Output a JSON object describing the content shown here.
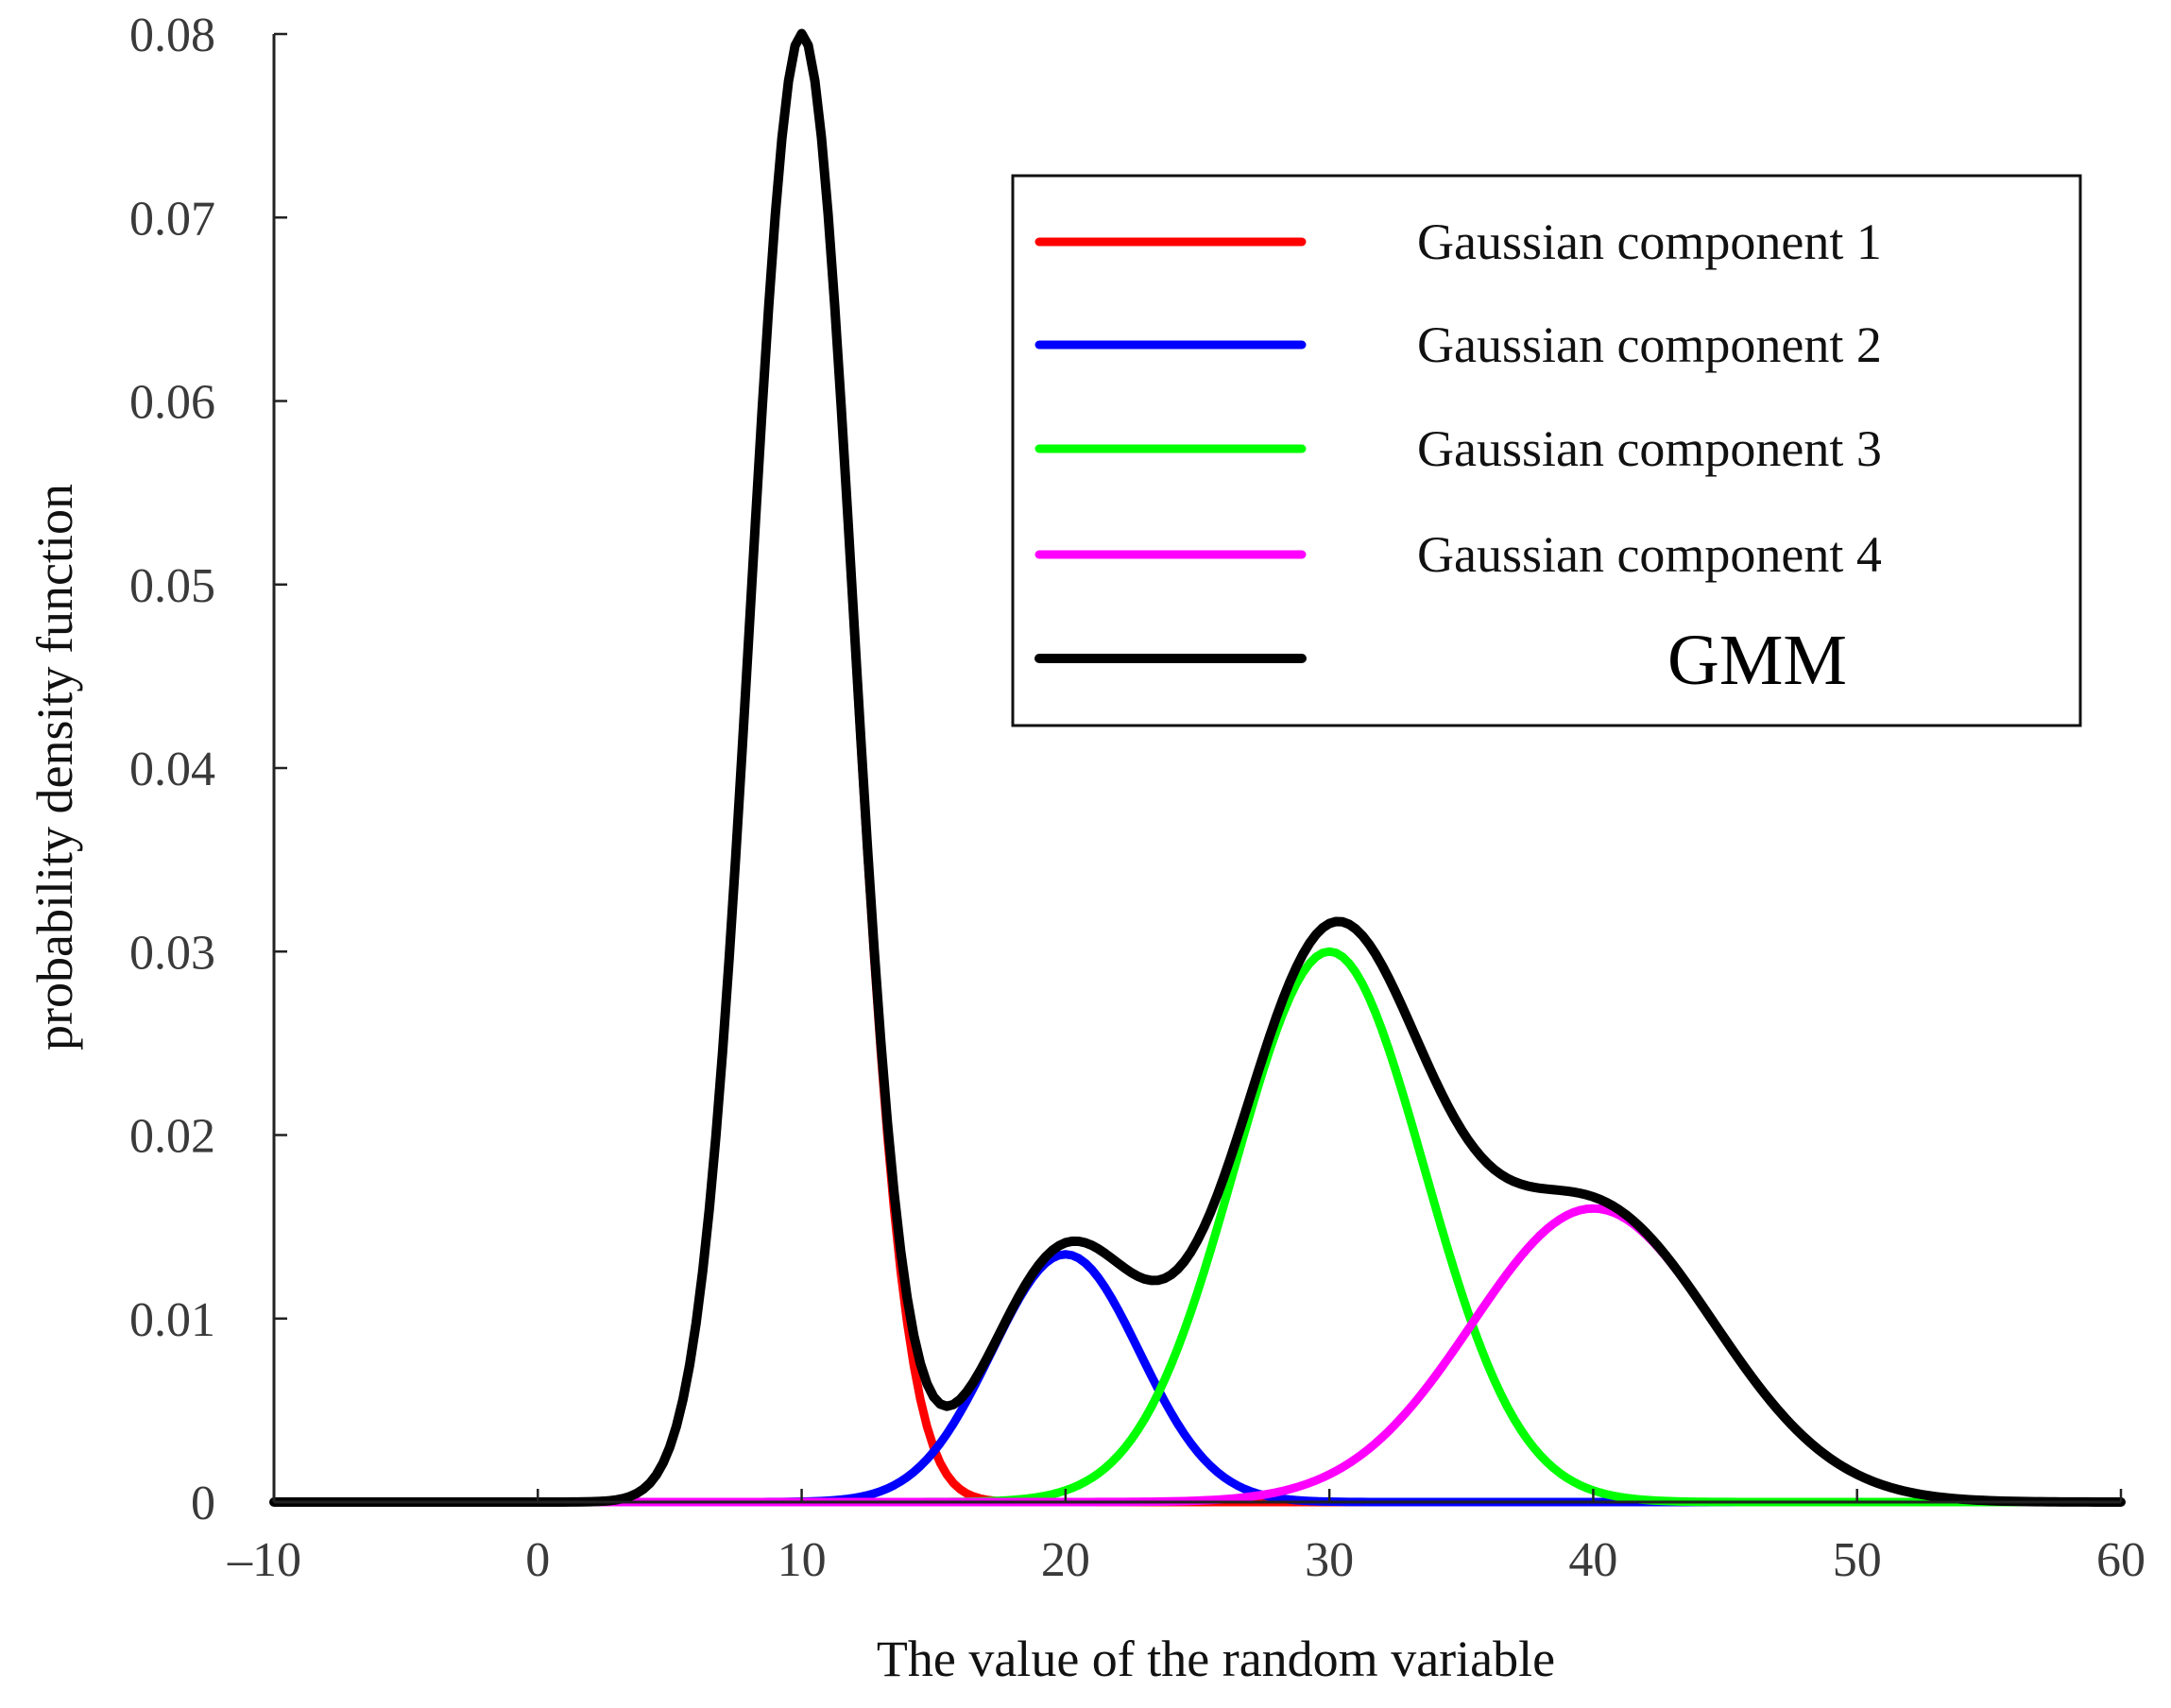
{
  "chart_data": {
    "type": "line",
    "title": "",
    "xlabel": "The value of the random variable",
    "ylabel": "probability density function",
    "xlim": [
      -10,
      60
    ],
    "ylim": [
      0,
      0.08
    ],
    "grid": false,
    "legend_position": "top-right",
    "x_ticks": [
      {
        "value": -10,
        "label": "–10"
      },
      {
        "value": 0,
        "label": "0"
      },
      {
        "value": 10,
        "label": "10"
      },
      {
        "value": 20,
        "label": "20"
      },
      {
        "value": 30,
        "label": "30"
      },
      {
        "value": 40,
        "label": "40"
      },
      {
        "value": 50,
        "label": "50"
      },
      {
        "value": 60,
        "label": "60"
      }
    ],
    "y_ticks": [
      {
        "value": 0,
        "label": "0"
      },
      {
        "value": 0.01,
        "label": "0.01"
      },
      {
        "value": 0.02,
        "label": "0.02"
      },
      {
        "value": 0.03,
        "label": "0.03"
      },
      {
        "value": 0.04,
        "label": "0.04"
      },
      {
        "value": 0.05,
        "label": "0.05"
      },
      {
        "value": 0.06,
        "label": "0.06"
      },
      {
        "value": 0.07,
        "label": "0.07"
      },
      {
        "value": 0.08,
        "label": "0.08"
      }
    ],
    "x_sampling": {
      "start": -10,
      "end": 60,
      "step": 0.25
    },
    "components": [
      {
        "name": "Gaussian component 1",
        "color": "#ff0000",
        "mean": 10,
        "sigma": 1.95,
        "peak": 0.08
      },
      {
        "name": "Gaussian component 2",
        "color": "#0000ff",
        "mean": 20,
        "sigma": 2.8,
        "peak": 0.0135
      },
      {
        "name": "Gaussian component 3",
        "color": "#00ff00",
        "mean": 30,
        "sigma": 3.6,
        "peak": 0.03
      },
      {
        "name": "Gaussian component 4",
        "color": "#ff00ff",
        "mean": 40,
        "sigma": 4.6,
        "peak": 0.016
      }
    ],
    "mixture": {
      "name": "GMM",
      "color": "#000000",
      "peaks": [
        {
          "x": 10,
          "y": 0.08
        },
        {
          "x": 20.5,
          "y": 0.015
        },
        {
          "x": 30.5,
          "y": 0.0325
        }
      ],
      "dip": {
        "x": 15.5,
        "y": 0.0063
      }
    }
  }
}
